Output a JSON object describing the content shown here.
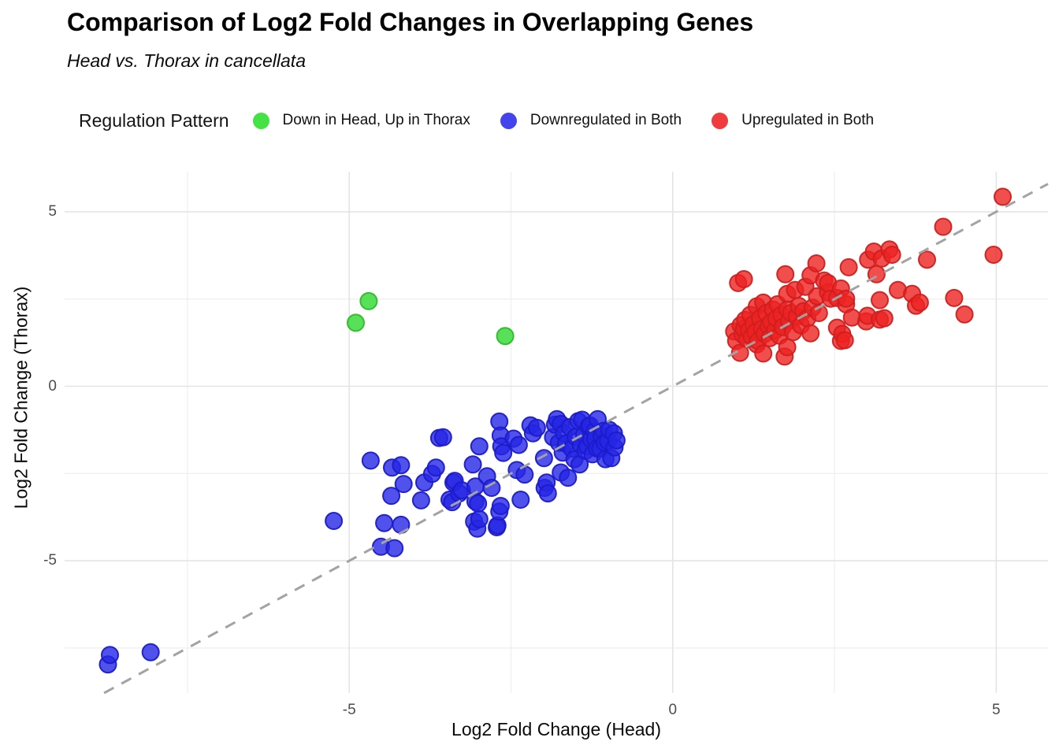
{
  "title": "Comparison of Log2 Fold Changes in Overlapping Genes",
  "subtitle": "Head vs. Thorax in cancellata",
  "legend": {
    "title": "Regulation Pattern",
    "items": [
      {
        "label": "Down in Head, Up in Thorax",
        "color": "#45e245"
      },
      {
        "label": "Downregulated in Both",
        "color": "#4444ef"
      },
      {
        "label": "Upregulated in Both",
        "color": "#f03c3c"
      }
    ]
  },
  "chart_data": {
    "type": "scatter",
    "title": "Comparison of Log2 Fold Changes in Overlapping Genes",
    "subtitle": "Head vs. Thorax in cancellata",
    "xlabel": "Log2 Fold Change (Head)",
    "ylabel": "Log2 Fold Change (Thorax)",
    "x_range": [
      -9.4,
      5.8
    ],
    "y_range": [
      -8.79,
      6.15
    ],
    "x_ticks_major": [
      -5,
      0,
      5
    ],
    "x_tick_labels": [
      "-5",
      "0",
      "5"
    ],
    "y_ticks_major": [
      -5,
      0,
      5
    ],
    "y_tick_labels": [
      "-5",
      "0",
      "5"
    ],
    "x_ticks_minor": [
      -7.5,
      -2.5,
      2.5
    ],
    "y_ticks_minor": [
      -7.5,
      -2.5,
      2.5
    ],
    "grid": true,
    "grid_major_color": "#e4e4e4",
    "grid_minor_color": "#eeeeee",
    "background": "#ffffff",
    "legend_position": "top",
    "marker_radius": 10.5,
    "marker_opacity": 0.8,
    "identity_line": {
      "equation": "y = x",
      "style": "dashed",
      "color": "#a3a3a3",
      "width": 3
    },
    "series": [
      {
        "name": "Down in Head, Up in Thorax",
        "slug": "down-head-up-thorax",
        "color": "#2ed82e",
        "stroke": "#2cbc2c",
        "points": [
          [
            -4.9,
            1.82
          ],
          [
            -4.7,
            2.44
          ],
          [
            -2.59,
            1.44
          ]
        ]
      },
      {
        "name": "Downregulated in Both",
        "slug": "down-in-both",
        "color": "#2525e6",
        "stroke": "#1b1bc8",
        "points": [
          [
            -8.73,
            -7.97
          ],
          [
            -8.7,
            -7.7
          ],
          [
            -8.07,
            -7.62
          ],
          [
            -5.24,
            -3.86
          ],
          [
            -4.67,
            -2.13
          ],
          [
            -4.51,
            -4.6
          ],
          [
            -4.46,
            -3.92
          ],
          [
            -4.35,
            -3.14
          ],
          [
            -4.34,
            -2.33
          ],
          [
            -4.3,
            -4.64
          ],
          [
            -4.2,
            -2.26
          ],
          [
            -4.2,
            -3.97
          ],
          [
            -4.16,
            -2.8
          ],
          [
            -3.89,
            -3.27
          ],
          [
            -3.84,
            -2.76
          ],
          [
            -3.72,
            -2.51
          ],
          [
            -3.66,
            -2.33
          ],
          [
            -3.61,
            -1.48
          ],
          [
            -3.55,
            -1.46
          ],
          [
            -3.45,
            -3.25
          ],
          [
            -3.41,
            -3.32
          ],
          [
            -3.39,
            -2.76
          ],
          [
            -3.37,
            -2.71
          ],
          [
            -3.3,
            -3.07
          ],
          [
            -3.26,
            -2.98
          ],
          [
            -3.09,
            -2.24
          ],
          [
            -3.07,
            -3.88
          ],
          [
            -3.05,
            -2.87
          ],
          [
            -3.05,
            -3.3
          ],
          [
            -3.02,
            -4.08
          ],
          [
            -3.01,
            -3.36
          ],
          [
            -2.99,
            -1.72
          ],
          [
            -2.99,
            -3.81
          ],
          [
            -2.87,
            -2.58
          ],
          [
            -2.8,
            -2.91
          ],
          [
            -2.72,
            -4.04
          ],
          [
            -2.71,
            -3.99
          ],
          [
            -2.68,
            -1.01
          ],
          [
            -2.68,
            -3.59
          ],
          [
            -2.66,
            -1.41
          ],
          [
            -2.66,
            -3.43
          ],
          [
            -2.65,
            -1.72
          ],
          [
            -2.62,
            -1.91
          ],
          [
            -2.46,
            -1.5
          ],
          [
            -2.41,
            -2.4
          ],
          [
            -2.38,
            -1.68
          ],
          [
            -2.35,
            -3.25
          ],
          [
            -2.29,
            -2.53
          ],
          [
            -2.2,
            -1.12
          ],
          [
            -2.16,
            -1.35
          ],
          [
            -2.1,
            -1.19
          ],
          [
            -1.99,
            -2.06
          ],
          [
            -1.98,
            -2.91
          ],
          [
            -1.95,
            -2.76
          ],
          [
            -1.93,
            -3.07
          ],
          [
            -1.85,
            -1.46
          ],
          [
            -1.82,
            -1.1
          ],
          [
            -1.79,
            -0.94
          ],
          [
            -1.76,
            -1.62
          ],
          [
            -1.73,
            -1.08
          ],
          [
            -1.73,
            -2.47
          ],
          [
            -1.7,
            -1.9
          ],
          [
            -1.68,
            -1.35
          ],
          [
            -1.65,
            -1.64
          ],
          [
            -1.62,
            -2.62
          ],
          [
            -1.59,
            -1.17
          ],
          [
            -1.56,
            -1.79
          ],
          [
            -1.52,
            -2.09
          ],
          [
            -1.5,
            -1.45
          ],
          [
            -1.46,
            -1.0
          ],
          [
            -1.44,
            -2.24
          ],
          [
            -1.42,
            -1.68
          ],
          [
            -1.4,
            -0.96
          ],
          [
            -1.37,
            -1.39
          ],
          [
            -1.35,
            -1.85
          ],
          [
            -1.32,
            -1.72
          ],
          [
            -1.3,
            -1.15
          ],
          [
            -1.28,
            -1.12
          ],
          [
            -1.26,
            -1.52
          ],
          [
            -1.24,
            -1.95
          ],
          [
            -1.21,
            -1.3
          ],
          [
            -1.2,
            -1.5
          ],
          [
            -1.17,
            -1.78
          ],
          [
            -1.16,
            -0.94
          ],
          [
            -1.12,
            -1.79
          ],
          [
            -1.1,
            -1.42
          ],
          [
            -1.07,
            -1.28
          ],
          [
            -1.05,
            -1.62
          ],
          [
            -1.04,
            -2.09
          ],
          [
            -1.0,
            -1.57
          ],
          [
            -0.98,
            -1.25
          ],
          [
            -0.95,
            -2.06
          ],
          [
            -0.91,
            -1.35
          ],
          [
            -0.9,
            -1.75
          ],
          [
            -0.87,
            -1.55
          ]
        ]
      },
      {
        "name": "Upregulated in Both",
        "slug": "up-in-both",
        "color": "#ee2222",
        "stroke": "#cf1f1f",
        "points": [
          [
            0.95,
            1.57
          ],
          [
            0.98,
            1.3
          ],
          [
            1.01,
            2.96
          ],
          [
            1.04,
            0.96
          ],
          [
            1.05,
            1.75
          ],
          [
            1.08,
            1.48
          ],
          [
            1.1,
            1.64
          ],
          [
            1.1,
            3.07
          ],
          [
            1.12,
            1.9
          ],
          [
            1.15,
            1.35
          ],
          [
            1.18,
            1.6
          ],
          [
            1.2,
            2.05
          ],
          [
            1.22,
            1.42
          ],
          [
            1.25,
            1.78
          ],
          [
            1.28,
            1.55
          ],
          [
            1.3,
            1.2
          ],
          [
            1.3,
            2.29
          ],
          [
            1.32,
            1.3
          ],
          [
            1.35,
            1.95
          ],
          [
            1.38,
            1.65
          ],
          [
            1.4,
            0.94
          ],
          [
            1.4,
            2.4
          ],
          [
            1.42,
            1.5
          ],
          [
            1.45,
            2.1
          ],
          [
            1.48,
            1.72
          ],
          [
            1.5,
            1.38
          ],
          [
            1.52,
            1.84
          ],
          [
            1.55,
            2.2
          ],
          [
            1.58,
            1.6
          ],
          [
            1.6,
            1.95
          ],
          [
            1.62,
            2.35
          ],
          [
            1.65,
            1.45
          ],
          [
            1.68,
            2.05
          ],
          [
            1.7,
            1.7
          ],
          [
            1.73,
            0.85
          ],
          [
            1.74,
            3.21
          ],
          [
            1.77,
            1.12
          ],
          [
            1.77,
            2.2
          ],
          [
            1.77,
            2.65
          ],
          [
            1.8,
            1.88
          ],
          [
            1.83,
            2.1
          ],
          [
            1.86,
            1.55
          ],
          [
            1.89,
            2.76
          ],
          [
            1.92,
            2.0
          ],
          [
            1.95,
            2.3
          ],
          [
            1.98,
            1.75
          ],
          [
            2.02,
            2.15
          ],
          [
            2.05,
            2.85
          ],
          [
            2.08,
            1.95
          ],
          [
            2.13,
            1.52
          ],
          [
            2.13,
            3.18
          ],
          [
            2.16,
            2.25
          ],
          [
            2.22,
            3.52
          ],
          [
            2.23,
            2.58
          ],
          [
            2.26,
            2.1
          ],
          [
            2.34,
            3.03
          ],
          [
            2.4,
            2.69
          ],
          [
            2.4,
            2.96
          ],
          [
            2.44,
            2.51
          ],
          [
            2.54,
            1.68
          ],
          [
            2.54,
            2.53
          ],
          [
            2.6,
            1.3
          ],
          [
            2.6,
            2.8
          ],
          [
            2.62,
            1.5
          ],
          [
            2.66,
            1.32
          ],
          [
            2.68,
            2.35
          ],
          [
            2.68,
            2.51
          ],
          [
            2.72,
            3.41
          ],
          [
            2.77,
            1.97
          ],
          [
            2.99,
            1.86
          ],
          [
            3.01,
            2.02
          ],
          [
            3.02,
            3.63
          ],
          [
            3.11,
            3.86
          ],
          [
            3.15,
            3.21
          ],
          [
            3.2,
            1.91
          ],
          [
            3.2,
            2.47
          ],
          [
            3.23,
            3.66
          ],
          [
            3.27,
            1.95
          ],
          [
            3.35,
            3.92
          ],
          [
            3.39,
            3.77
          ],
          [
            3.48,
            2.76
          ],
          [
            3.7,
            2.65
          ],
          [
            3.76,
            2.31
          ],
          [
            3.82,
            2.4
          ],
          [
            3.93,
            3.63
          ],
          [
            4.18,
            4.57
          ],
          [
            4.35,
            2.53
          ],
          [
            4.51,
            2.06
          ],
          [
            4.96,
            3.77
          ],
          [
            5.1,
            5.43
          ]
        ]
      }
    ]
  }
}
